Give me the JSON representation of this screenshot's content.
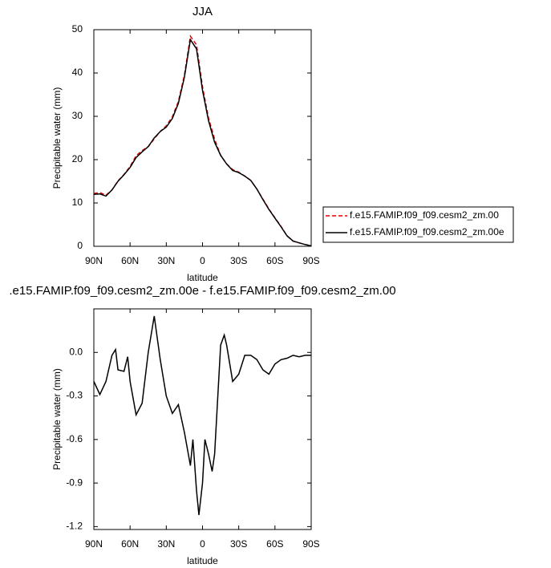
{
  "chart_data": [
    {
      "type": "line",
      "title": "JJA",
      "x_label": "latitude",
      "y_label": "Precipitable water (mm)",
      "x": [
        90,
        85,
        80,
        75,
        70,
        65,
        60,
        55,
        50,
        45,
        40,
        35,
        30,
        25,
        20,
        15,
        10,
        5,
        0,
        -5,
        -10,
        -15,
        -20,
        -25,
        -30,
        -35,
        -40,
        -45,
        -50,
        -55,
        -60,
        -65,
        -70,
        -75,
        -80,
        -85,
        -90
      ],
      "series": [
        {
          "name": "f.e15.FAMIP.f09_f09.cesm2_zm.00",
          "color": "#e00000",
          "dash": true,
          "values": [
            12.2,
            12.4,
            11.8,
            13,
            15.1,
            16.6,
            18.4,
            20.9,
            22.1,
            23.0,
            24.8,
            26.5,
            27.8,
            29.9,
            33.4,
            39.5,
            48.5,
            46.5,
            36.8,
            29.6,
            24.7,
            21.0,
            19.0,
            17.7,
            17.1,
            16.2,
            15.2,
            13.2,
            10.9,
            8.6,
            6.6,
            4.6,
            2.4,
            1.2,
            0.8,
            0.4,
            0.1
          ]
        },
        {
          "name": "f.e15.FAMIP.f09_f09.cesm2_zm.00e",
          "color": "#000000",
          "dash": false,
          "values": [
            12.0,
            12.1,
            11.6,
            13,
            15.0,
            16.5,
            18.2,
            20.5,
            21.8,
            23.0,
            25.0,
            26.5,
            27.5,
            29.5,
            33.0,
            39.0,
            47.7,
            45.6,
            36.0,
            29.0,
            24.0,
            21.0,
            19.0,
            17.5,
            17.0,
            16.2,
            15.2,
            13.2,
            10.8,
            8.5,
            6.5,
            4.5,
            2.4,
            1.2,
            0.8,
            0.4,
            0.1
          ]
        }
      ],
      "xlim": [
        90,
        -90
      ],
      "ylim": [
        0,
        50
      ],
      "xticks": [
        {
          "value": 90,
          "label": "90N"
        },
        {
          "value": 60,
          "label": "60N"
        },
        {
          "value": 30,
          "label": "30N"
        },
        0,
        {
          "value": -30,
          "label": "30S"
        },
        {
          "value": -60,
          "label": "60S"
        },
        {
          "value": -90,
          "label": "90S"
        }
      ],
      "yticks": [
        0,
        10,
        20,
        30,
        40,
        50
      ],
      "legend": "right"
    },
    {
      "type": "line",
      "title": ".e15.FAMIP.f09_f09.cesm2_zm.00e - f.e15.FAMIP.f09_f09.cesm2_zm.00",
      "x_label": "latitude",
      "y_label": "Precipitable water (mm)",
      "x": [
        90,
        85,
        80,
        75,
        72,
        70,
        65,
        62,
        60,
        55,
        50,
        45,
        40,
        35,
        30,
        25,
        20,
        15,
        10,
        8,
        5,
        3,
        0,
        -2,
        -5,
        -8,
        -10,
        -15,
        -18,
        -20,
        -25,
        -30,
        -35,
        -40,
        -45,
        -50,
        -55,
        -60,
        -65,
        -70,
        -75,
        -80,
        -85,
        -90
      ],
      "series": [
        {
          "color": "#000000",
          "dash": false,
          "values": [
            -0.2,
            -0.29,
            -0.2,
            -0.02,
            0.02,
            -0.12,
            -0.13,
            -0.03,
            -0.2,
            -0.43,
            -0.35,
            0.0,
            0.25,
            -0.05,
            -0.3,
            -0.42,
            -0.36,
            -0.55,
            -0.78,
            -0.6,
            -0.95,
            -1.12,
            -0.9,
            -0.6,
            -0.7,
            -0.82,
            -0.7,
            0.05,
            0.12,
            0.05,
            -0.2,
            -0.15,
            -0.02,
            -0.02,
            -0.05,
            -0.12,
            -0.15,
            -0.08,
            -0.05,
            -0.04,
            -0.02,
            -0.03,
            -0.02,
            -0.02
          ]
        }
      ],
      "xlim": [
        90,
        -90
      ],
      "ylim": [
        -1.22,
        0.3
      ],
      "xticks": [
        {
          "value": 90,
          "label": "90N"
        },
        {
          "value": 60,
          "label": "60N"
        },
        {
          "value": 30,
          "label": "30N"
        },
        0,
        {
          "value": -30,
          "label": "30S"
        },
        {
          "value": -60,
          "label": "60S"
        },
        {
          "value": -90,
          "label": "90S"
        }
      ],
      "yticks": [
        {
          "value": 0,
          "label": "0.0"
        },
        -0.3,
        -0.6,
        -0.9,
        -1.2
      ]
    }
  ]
}
